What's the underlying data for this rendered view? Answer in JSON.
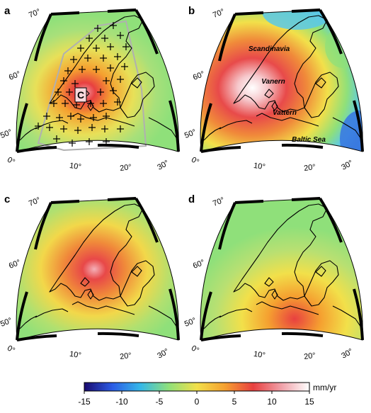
{
  "panels": [
    {
      "letter": "a",
      "lat_labels": [
        "70°",
        "60°",
        "50°"
      ],
      "lon_labels": [
        "0°",
        "10°",
        "20°",
        "30°"
      ],
      "marker_label": "C"
    },
    {
      "letter": "b",
      "lat_labels": [
        "70°",
        "60°",
        "50°"
      ],
      "lon_labels": [
        "0°",
        "10°",
        "20°",
        "30°"
      ],
      "places": [
        "Scandinavia",
        "Vanern",
        "Vattern",
        "Baltic Sea"
      ]
    },
    {
      "letter": "c",
      "lat_labels": [
        "70°",
        "60°",
        "50°"
      ],
      "lon_labels": [
        "0°",
        "10°",
        "20°",
        "30°"
      ]
    },
    {
      "letter": "d",
      "lat_labels": [
        "70°",
        "60°",
        "50°"
      ],
      "lon_labels": [
        "0°",
        "10°",
        "20°",
        "30°"
      ]
    }
  ],
  "colorbar": {
    "unit": "mm/yr",
    "ticks": [
      "-15",
      "-10",
      "-5",
      "0",
      "5",
      "10",
      "15"
    ],
    "range": [
      -15,
      15
    ],
    "colors": [
      "#1a0a6e",
      "#2b5ce6",
      "#35b8e8",
      "#8fe07a",
      "#f2e04a",
      "#f5a030",
      "#e84040",
      "#f0a0a8",
      "#ffffff"
    ]
  }
}
